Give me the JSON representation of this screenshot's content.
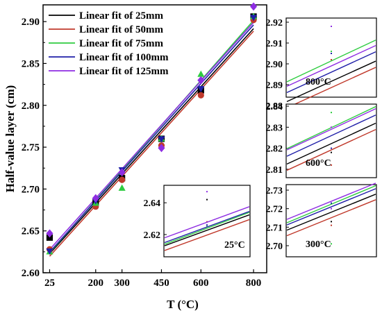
{
  "chart_data": {
    "type": "scatter",
    "xlabel": "T (°C)",
    "ylabel": "Half-value layer (cm)",
    "x_ticks": [
      25,
      200,
      300,
      450,
      600,
      800
    ],
    "y_ticks": [
      "2.60",
      "2.65",
      "2.70",
      "2.75",
      "2.80",
      "2.85",
      "2.90"
    ],
    "ylim": [
      2.6,
      2.92
    ],
    "legend_position": "top-left",
    "series": [
      {
        "name": "Linear fit of 25mm",
        "color": "#000000",
        "marker": "square",
        "points": [
          [
            25,
            2.642
          ],
          [
            200,
            2.684
          ],
          [
            300,
            2.713
          ],
          [
            450,
            2.76
          ],
          [
            600,
            2.818
          ],
          [
            800,
            2.906
          ]
        ],
        "fit": {
          "slope": 0.000347,
          "intercept": 2.614
        }
      },
      {
        "name": "Linear fit of 50mm",
        "color": "#c0392b",
        "marker": "circle",
        "points": [
          [
            25,
            2.628
          ],
          [
            200,
            2.679
          ],
          [
            300,
            2.711
          ],
          [
            450,
            2.752
          ],
          [
            600,
            2.812
          ],
          [
            800,
            2.902
          ]
        ],
        "fit": {
          "slope": 0.000347,
          "intercept": 2.611
        }
      },
      {
        "name": "Linear fit of 75mm",
        "color": "#2ecc40",
        "marker": "triangle",
        "points": [
          [
            25,
            2.625
          ],
          [
            200,
            2.683
          ],
          [
            300,
            2.701
          ],
          [
            450,
            2.76
          ],
          [
            600,
            2.837
          ],
          [
            800,
            2.906
          ]
        ],
        "fit": {
          "slope": 0.000358,
          "intercept": 2.615
        }
      },
      {
        "name": "Linear fit of 100mm",
        "color": "#1f1fa8",
        "marker": "inverted-triangle",
        "points": [
          [
            25,
            2.626
          ],
          [
            200,
            2.686
          ],
          [
            300,
            2.723
          ],
          [
            450,
            2.76
          ],
          [
            600,
            2.82
          ],
          [
            800,
            2.905
          ]
        ],
        "fit": {
          "slope": 0.00035,
          "intercept": 2.616
        }
      },
      {
        "name": "Linear fit of 125mm",
        "color": "#8e2de2",
        "marker": "diamond",
        "points": [
          [
            25,
            2.647
          ],
          [
            200,
            2.689
          ],
          [
            300,
            2.72
          ],
          [
            450,
            2.749
          ],
          [
            600,
            2.83
          ],
          [
            800,
            2.918
          ]
        ],
        "fit": {
          "slope": 0.00035,
          "intercept": 2.619
        }
      }
    ],
    "insets": [
      {
        "label": "800°C",
        "x": 800,
        "y_ticks": [
          "2.88",
          "2.89",
          "2.90",
          "2.91",
          "2.92"
        ],
        "ylim": [
          2.884,
          2.922
        ]
      },
      {
        "label": "600°C",
        "x": 600,
        "y_ticks": [
          "2.81",
          "2.82",
          "2.83",
          "2.84"
        ],
        "ylim": [
          2.806,
          2.841
        ]
      },
      {
        "label": "300°C",
        "x": 300,
        "y_ticks": [
          "2.70",
          "2.71",
          "2.72",
          "2.73"
        ],
        "ylim": [
          2.694,
          2.733
        ]
      },
      {
        "label": "25°C",
        "x": 25,
        "y_ticks": [
          "2.62",
          "2.64"
        ],
        "ylim": [
          2.606,
          2.651
        ]
      }
    ]
  }
}
